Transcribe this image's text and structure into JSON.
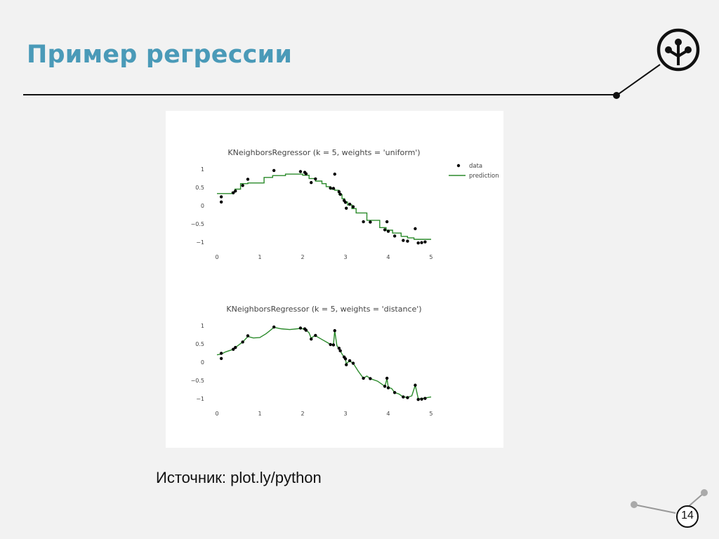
{
  "slide": {
    "title": "Пример регрессии",
    "source": "Источник: plot.ly/python",
    "page_number": "14"
  },
  "colors": {
    "title": "#4a9ab8",
    "line": "#111111",
    "prediction": "#2a8a2a",
    "data_points": "#000000"
  },
  "icons": {
    "logo": "tree-branch-logo-icon"
  },
  "chart_data": [
    {
      "type": "scatter+line",
      "title": "KNeighborsRegressor (k = 5, weights = 'uniform')",
      "xlim": [
        -0.05,
        5.05
      ],
      "ylim": [
        -1.15,
        1.15
      ],
      "x_ticks": [
        0,
        1,
        2,
        3,
        4,
        5
      ],
      "x_tick_labels": [
        "0",
        "1",
        "2",
        "3",
        "4",
        "5"
      ],
      "y_ticks": [
        1,
        0.5,
        0,
        -0.5,
        -1
      ],
      "y_tick_labels": [
        "1",
        "0.5",
        "0",
        "−0.5",
        "−1"
      ],
      "grid": false,
      "legend": {
        "placement": "top-right",
        "entries": [
          {
            "name": "data",
            "kind": "marker"
          },
          {
            "name": "prediction",
            "kind": "line"
          }
        ]
      },
      "data": {
        "x": [
          0.1,
          0.1,
          0.38,
          0.43,
          0.6,
          0.72,
          1.33,
          1.95,
          2.05,
          2.08,
          2.2,
          2.3,
          2.65,
          2.72,
          2.75,
          2.85,
          2.88,
          2.97,
          3.0,
          3.02,
          3.1,
          3.18,
          3.42,
          3.58,
          3.92,
          3.97,
          4.0,
          4.15,
          4.35,
          4.45,
          4.63,
          4.7,
          4.78,
          4.86
        ],
        "y": [
          0.24,
          0.1,
          0.35,
          0.4,
          0.55,
          0.72,
          0.96,
          0.93,
          0.91,
          0.87,
          0.63,
          0.73,
          0.48,
          0.47,
          0.86,
          0.38,
          0.31,
          0.14,
          0.09,
          -0.07,
          0.04,
          -0.03,
          -0.44,
          -0.45,
          -0.66,
          -0.44,
          -0.7,
          -0.83,
          -0.95,
          -0.97,
          -0.63,
          -1.02,
          -1.01,
          -0.99
        ]
      },
      "prediction": {
        "x": [
          0.0,
          0.35,
          0.35,
          0.42,
          0.42,
          0.55,
          0.55,
          0.72,
          0.72,
          1.1,
          1.1,
          1.3,
          1.3,
          1.6,
          1.6,
          2.0,
          2.0,
          2.15,
          2.15,
          2.3,
          2.3,
          2.45,
          2.45,
          2.55,
          2.55,
          2.65,
          2.65,
          2.75,
          2.75,
          2.85,
          2.85,
          2.92,
          2.92,
          2.98,
          2.98,
          3.05,
          3.05,
          3.15,
          3.15,
          3.25,
          3.25,
          3.5,
          3.5,
          3.8,
          3.8,
          3.95,
          3.95,
          4.1,
          4.1,
          4.3,
          4.3,
          4.45,
          4.45,
          4.6,
          4.6,
          5.0
        ],
        "y": [
          0.33,
          0.33,
          0.37,
          0.37,
          0.45,
          0.45,
          0.6,
          0.6,
          0.62,
          0.62,
          0.77,
          0.77,
          0.82,
          0.82,
          0.86,
          0.86,
          0.83,
          0.83,
          0.74,
          0.74,
          0.67,
          0.67,
          0.6,
          0.6,
          0.52,
          0.52,
          0.45,
          0.45,
          0.42,
          0.42,
          0.3,
          0.3,
          0.19,
          0.19,
          0.1,
          0.1,
          0.02,
          0.02,
          -0.08,
          -0.08,
          -0.2,
          -0.2,
          -0.4,
          -0.4,
          -0.6,
          -0.6,
          -0.67,
          -0.67,
          -0.75,
          -0.75,
          -0.84,
          -0.84,
          -0.88,
          -0.88,
          -0.92,
          -0.92
        ]
      }
    },
    {
      "type": "scatter+line",
      "title": "KNeighborsRegressor (k = 5, weights = 'distance')",
      "xlim": [
        -0.05,
        5.05
      ],
      "ylim": [
        -1.15,
        1.15
      ],
      "x_ticks": [
        0,
        1,
        2,
        3,
        4,
        5
      ],
      "x_tick_labels": [
        "0",
        "1",
        "2",
        "3",
        "4",
        "5"
      ],
      "y_ticks": [
        1,
        0.5,
        0,
        -0.5,
        -1
      ],
      "y_tick_labels": [
        "1",
        "0.5",
        "0",
        "−0.5",
        "−1"
      ],
      "grid": false,
      "data": {
        "x": [
          0.1,
          0.1,
          0.38,
          0.43,
          0.6,
          0.72,
          1.33,
          1.95,
          2.05,
          2.08,
          2.2,
          2.3,
          2.65,
          2.72,
          2.75,
          2.85,
          2.88,
          2.97,
          3.0,
          3.02,
          3.1,
          3.18,
          3.42,
          3.58,
          3.92,
          3.97,
          4.0,
          4.15,
          4.35,
          4.45,
          4.63,
          4.7,
          4.78,
          4.86
        ],
        "y": [
          0.24,
          0.1,
          0.35,
          0.4,
          0.55,
          0.72,
          0.96,
          0.93,
          0.91,
          0.87,
          0.63,
          0.73,
          0.48,
          0.47,
          0.86,
          0.38,
          0.31,
          0.14,
          0.09,
          -0.07,
          0.04,
          -0.03,
          -0.44,
          -0.45,
          -0.66,
          -0.44,
          -0.7,
          -0.83,
          -0.95,
          -0.97,
          -0.63,
          -1.02,
          -1.01,
          -0.99
        ]
      },
      "prediction": {
        "x": [
          0.0,
          0.1,
          0.2,
          0.38,
          0.43,
          0.6,
          0.72,
          0.85,
          1.0,
          1.15,
          1.33,
          1.5,
          1.7,
          1.95,
          2.05,
          2.08,
          2.15,
          2.2,
          2.25,
          2.3,
          2.45,
          2.6,
          2.65,
          2.72,
          2.75,
          2.8,
          2.85,
          2.88,
          2.92,
          2.97,
          3.0,
          3.02,
          3.06,
          3.1,
          3.18,
          3.3,
          3.42,
          3.5,
          3.58,
          3.75,
          3.92,
          3.97,
          4.0,
          4.08,
          4.15,
          4.25,
          4.35,
          4.45,
          4.55,
          4.63,
          4.7,
          4.78,
          4.86,
          5.0
        ],
        "y": [
          0.2,
          0.22,
          0.28,
          0.35,
          0.4,
          0.55,
          0.7,
          0.66,
          0.67,
          0.78,
          0.95,
          0.91,
          0.89,
          0.92,
          0.9,
          0.88,
          0.8,
          0.65,
          0.7,
          0.72,
          0.62,
          0.52,
          0.48,
          0.47,
          0.86,
          0.45,
          0.37,
          0.31,
          0.22,
          0.14,
          0.09,
          -0.05,
          0.0,
          0.03,
          -0.03,
          -0.25,
          -0.44,
          -0.38,
          -0.45,
          -0.52,
          -0.66,
          -0.45,
          -0.69,
          -0.72,
          -0.83,
          -0.87,
          -0.95,
          -0.96,
          -0.92,
          -0.63,
          -1.0,
          -1.0,
          -0.98,
          -0.95
        ]
      }
    }
  ]
}
